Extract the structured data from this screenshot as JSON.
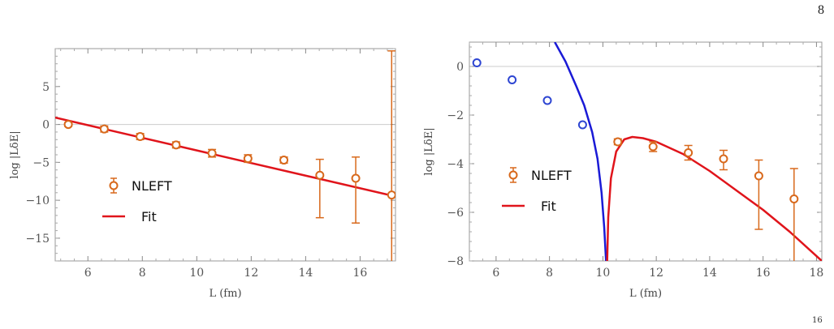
{
  "page": {
    "number": "8",
    "corner_fragment": "16"
  },
  "colors": {
    "data": "#d8691c",
    "fit": "#e0141b",
    "fit_left_branch": "#1a1ad6",
    "data_excluded": "#2d45d2",
    "zero_line": "#cccccc",
    "frame": "#999999"
  },
  "chart_data": [
    {
      "type": "scatter",
      "xlabel": "L (fm)",
      "ylabel": "log |LδE|",
      "xlim": [
        4.8,
        17.3
      ],
      "ylim": [
        -18,
        10
      ],
      "xticks": [
        6,
        8,
        10,
        12,
        14,
        16
      ],
      "yticks": [
        5,
        0,
        -5,
        -10,
        -15
      ],
      "xtick_labels": [
        "6",
        "8",
        "10",
        "12",
        "14",
        "16"
      ],
      "ytick_labels": [
        "5",
        "0",
        "−5",
        "−10",
        "−15"
      ],
      "reference_line_y": 0,
      "legend": {
        "position": "left",
        "entries": [
          "NLEFT",
          "Fit"
        ]
      },
      "series": [
        {
          "name": "NLEFT",
          "kind": "points_with_errorbars",
          "points": [
            {
              "x": 5.28,
              "y": 0.0,
              "err": 0.25
            },
            {
              "x": 6.6,
              "y": -0.6,
              "err": 0.4
            },
            {
              "x": 7.92,
              "y": -1.6,
              "err": 0.4
            },
            {
              "x": 9.24,
              "y": -2.7,
              "err": 0.4
            },
            {
              "x": 10.56,
              "y": -3.8,
              "err": 0.5
            },
            {
              "x": 11.88,
              "y": -4.5,
              "err": 0.5
            },
            {
              "x": 13.2,
              "y": -4.7,
              "err": 0.4
            },
            {
              "x": 14.52,
              "y": -6.7,
              "err_low": 5.6,
              "err_high": 2.1
            },
            {
              "x": 15.84,
              "y": -7.1,
              "err_low": 5.9,
              "err_high": 2.8
            },
            {
              "x": 17.16,
              "y": -9.3,
              "err_low": 9.0,
              "err_high": 19.0
            }
          ]
        },
        {
          "name": "Fit",
          "kind": "line",
          "x": [
            4.8,
            17.3
          ],
          "y": [
            0.9,
            -9.5
          ]
        }
      ]
    },
    {
      "type": "scatter",
      "xlabel": "L (fm)",
      "ylabel": "log |LδE|",
      "xlim": [
        5.0,
        18.2
      ],
      "ylim": [
        -8,
        1
      ],
      "xticks": [
        6,
        8,
        10,
        12,
        14,
        16,
        18
      ],
      "yticks": [
        0,
        -2,
        -4,
        -6,
        -8
      ],
      "xtick_labels": [
        "6",
        "8",
        "10",
        "12",
        "14",
        "16",
        "18"
      ],
      "ytick_labels": [
        "0",
        "−2",
        "−4",
        "−6",
        "−8"
      ],
      "reference_line_y": 0,
      "legend": {
        "position": "center-left",
        "entries": [
          "NLEFT",
          "Fit"
        ]
      },
      "series": [
        {
          "name": "NLEFT",
          "kind": "points_with_errorbars",
          "points": [
            {
              "x": 10.56,
              "y": -3.1,
              "err": 0.12
            },
            {
              "x": 11.88,
              "y": -3.3,
              "err": 0.2
            },
            {
              "x": 13.2,
              "y": -3.55,
              "err": 0.3
            },
            {
              "x": 14.52,
              "y": -3.8,
              "err_low": 0.45,
              "err_high": 0.35
            },
            {
              "x": 15.84,
              "y": -4.5,
              "err_low": 2.2,
              "err_high": 0.65
            },
            {
              "x": 17.16,
              "y": -5.45,
              "err_low": 3.0,
              "err_high": 1.25
            }
          ]
        },
        {
          "kind": "points",
          "points": [
            {
              "x": 5.28,
              "y": 0.15
            },
            {
              "x": 6.6,
              "y": -0.55
            },
            {
              "x": 7.92,
              "y": -1.4
            },
            {
              "x": 9.24,
              "y": -2.4
            }
          ]
        },
        {
          "name": "Fit",
          "kind": "curve",
          "branches": [
            {
              "color": "fit_left_branch",
              "x": [
                8.2,
                8.6,
                9.0,
                9.3,
                9.6,
                9.8,
                9.95,
                10.05,
                10.12
              ],
              "y": [
                1.0,
                0.2,
                -0.8,
                -1.6,
                -2.7,
                -3.8,
                -5.2,
                -6.6,
                -8.0
              ]
            },
            {
              "color": "fit",
              "x": [
                10.16,
                10.2,
                10.3,
                10.5,
                10.8,
                11.1,
                11.5,
                12.0,
                13.0,
                14.0,
                15.0,
                16.0,
                17.0,
                18.2
              ],
              "y": [
                -8.0,
                -6.2,
                -4.6,
                -3.5,
                -3.0,
                -2.9,
                -2.95,
                -3.1,
                -3.6,
                -4.3,
                -5.1,
                -5.9,
                -6.8,
                -8.0
              ]
            }
          ]
        }
      ]
    }
  ]
}
